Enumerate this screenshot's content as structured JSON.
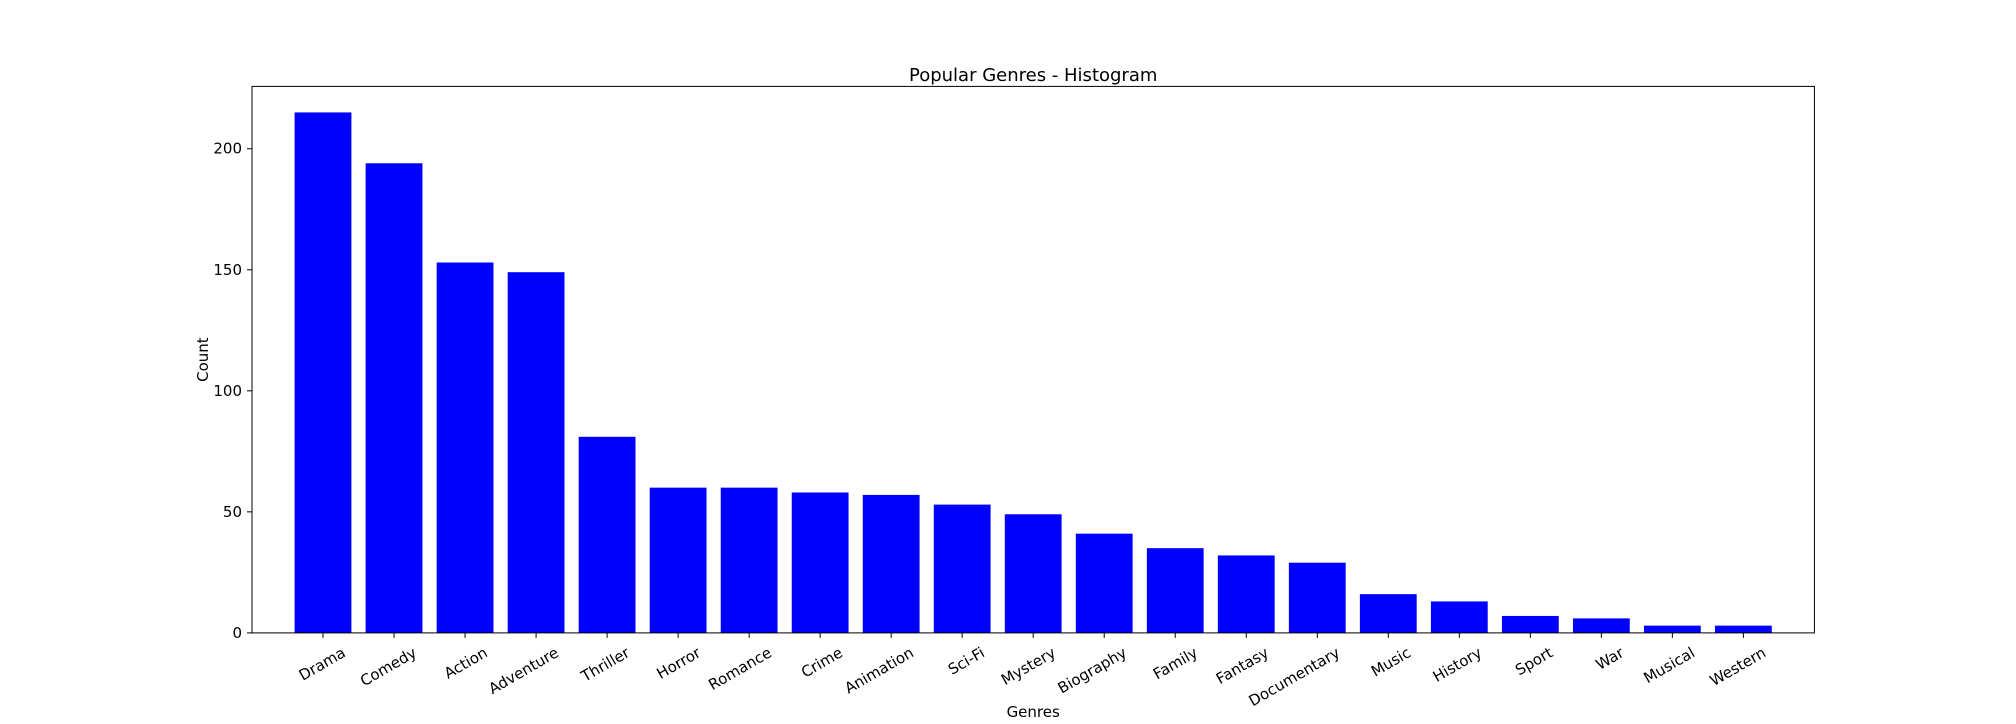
{
  "chart_data": {
    "type": "bar",
    "title": "Popular Genres - Histogram",
    "xlabel": "Genres",
    "ylabel": "Count",
    "categories": [
      "Drama",
      "Comedy",
      "Action",
      "Adventure",
      "Thriller",
      "Horror",
      "Romance",
      "Crime",
      "Animation",
      "Sci-Fi",
      "Mystery",
      "Biography",
      "Family",
      "Fantasy",
      "Documentary",
      "Music",
      "History",
      "Sport",
      "War",
      "Musical",
      "Western"
    ],
    "values": [
      215,
      194,
      153,
      149,
      81,
      60,
      60,
      58,
      57,
      53,
      49,
      41,
      35,
      32,
      29,
      16,
      13,
      7,
      6,
      3,
      3
    ],
    "ylim": [
      0,
      225.75
    ],
    "yticks": [
      0,
      50,
      100,
      150,
      200
    ],
    "bar_color": "#0000ff",
    "grid": false,
    "legend": false
  }
}
